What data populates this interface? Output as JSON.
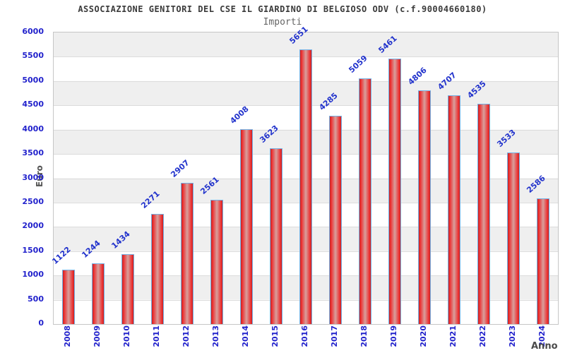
{
  "title": "ASSOCIAZIONE GENITORI DEL CSE IL GIARDINO DI BELGIOSO ODV (c.f.90004660180)",
  "subtitle": "Importi",
  "chart_data": {
    "type": "bar",
    "title": "ASSOCIAZIONE GENITORI DEL CSE IL GIARDINO DI BELGIOSO ODV (c.f.90004660180)",
    "subtitle": "Importi",
    "xlabel": "Anno",
    "ylabel": "Euro",
    "categories": [
      "2008",
      "2009",
      "2010",
      "2011",
      "2012",
      "2013",
      "2014",
      "2015",
      "2016",
      "2017",
      "2018",
      "2019",
      "2020",
      "2021",
      "2022",
      "2023",
      "2024"
    ],
    "values": [
      1122,
      1244,
      1434,
      2271,
      2907,
      2561,
      4008,
      3623,
      5651,
      4285,
      5059,
      5461,
      4806,
      4707,
      4535,
      3533,
      2586
    ],
    "ylim": [
      0,
      6000
    ],
    "ytick_step": 500,
    "yticks": [
      0,
      500,
      1000,
      1500,
      2000,
      2500,
      3000,
      3500,
      4000,
      4500,
      5000,
      5500,
      6000
    ],
    "grid": true,
    "legend": false,
    "band_colors": [
      "#efefef",
      "#ffffff"
    ],
    "bar_fill_color": "#e03030",
    "bar_highlight_color": "#d9a09c",
    "bar_border_color": "#74b0e4",
    "value_label_color": "#2233cc",
    "tick_label_color": "#2222cc",
    "axis_title_color": "#555555",
    "title_color": "#3a3a3a"
  }
}
